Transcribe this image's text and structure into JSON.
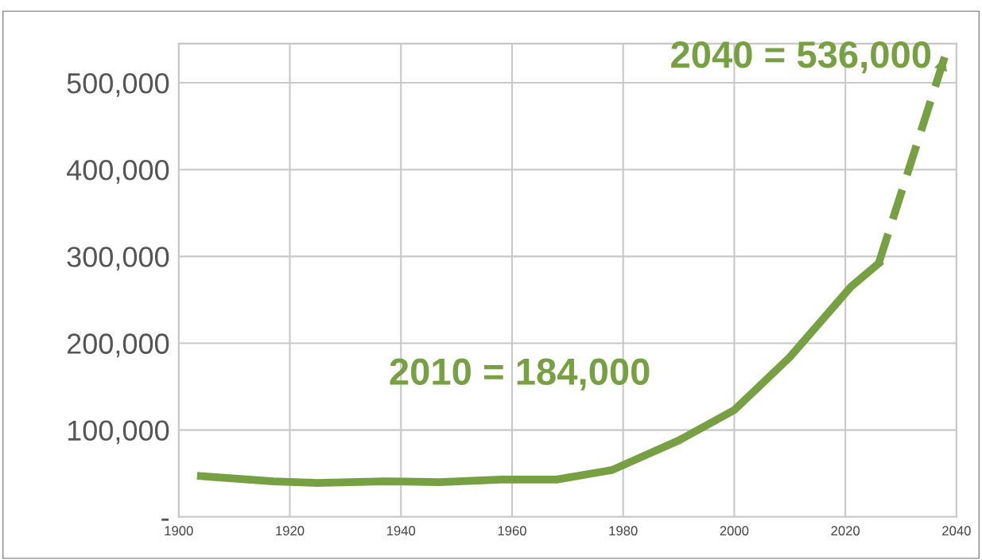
{
  "chart_data": {
    "type": "line",
    "x": [
      1904,
      1917,
      1925,
      1937,
      1947,
      1958,
      1968,
      1978,
      1990,
      2000,
      2010,
      2021,
      2026
    ],
    "series": [
      {
        "color": "#77a043",
        "values": [
          47000,
          41000,
          39000,
          41000,
          40000,
          43000,
          43000,
          54000,
          88000,
          123000,
          184000,
          265000,
          292000
        ]
      },
      {
        "color": "#77a043",
        "x": [
          2026,
          2038
        ],
        "values": [
          292000,
          532000
        ],
        "line_style": "dashed"
      }
    ],
    "xlim": [
      1900,
      2040
    ],
    "xticks": [
      1900,
      1920,
      1940,
      1960,
      1980,
      2000,
      2020,
      2040
    ],
    "ylim": [
      0,
      545000
    ],
    "yticks": [
      {
        "value": 0,
        "label": "-"
      },
      {
        "value": 100000,
        "label": "100,000"
      },
      {
        "value": 200000,
        "label": "200,000"
      },
      {
        "value": 300000,
        "label": "300,000"
      },
      {
        "value": 400000,
        "label": "400,000"
      },
      {
        "value": 500000,
        "label": "500,000"
      }
    ],
    "grid": true,
    "marker": "none",
    "line_style": "solid",
    "annotations": [
      "2010 = 184,000",
      "2040 = 536,000"
    ]
  }
}
